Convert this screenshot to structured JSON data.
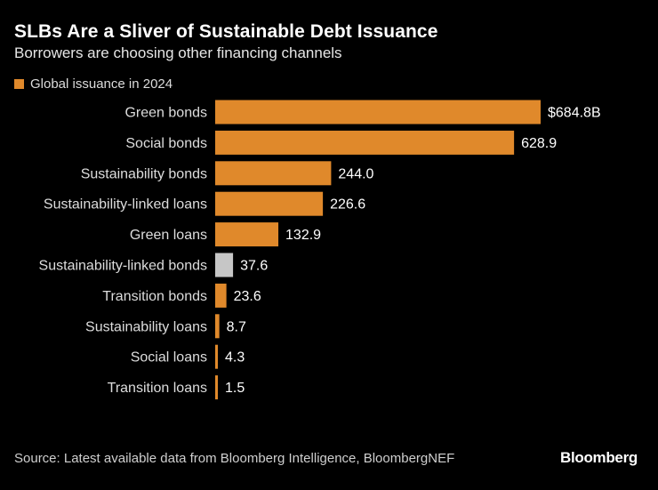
{
  "title": "SLBs Are a Sliver of Sustainable Debt Issuance",
  "subtitle": "Borrowers are choosing other financing channels",
  "legend": {
    "label": "Global issuance in 2024"
  },
  "colors": {
    "primary": "#E0892B",
    "highlight": "#C6C6C6",
    "background": "#000000"
  },
  "chart_data": {
    "type": "bar",
    "orientation": "horizontal",
    "series": [
      {
        "name": "Global issuance in 2024",
        "values": [
          684.8,
          628.9,
          244.0,
          226.6,
          132.9,
          37.6,
          23.6,
          8.7,
          4.3,
          1.5
        ]
      }
    ],
    "categories": [
      "Green bonds",
      "Social bonds",
      "Sustainability bonds",
      "Sustainability-linked loans",
      "Green loans",
      "Sustainability-linked bonds",
      "Transition bonds",
      "Sustainability loans",
      "Social loans",
      "Transition loans"
    ],
    "value_labels": [
      "$684.8B",
      "628.9",
      "244.0",
      "226.6",
      "132.9",
      "37.6",
      "23.6",
      "8.7",
      "4.3",
      "1.5"
    ],
    "highlight_category": "Sustainability-linked bonds",
    "xlim": [
      0,
      684.8
    ],
    "title": "SLBs Are a Sliver of Sustainable Debt Issuance",
    "xlabel": "",
    "ylabel": ""
  },
  "source": "Source: Latest available data from Bloomberg Intelligence, BloombergNEF",
  "brand": "Bloomberg"
}
